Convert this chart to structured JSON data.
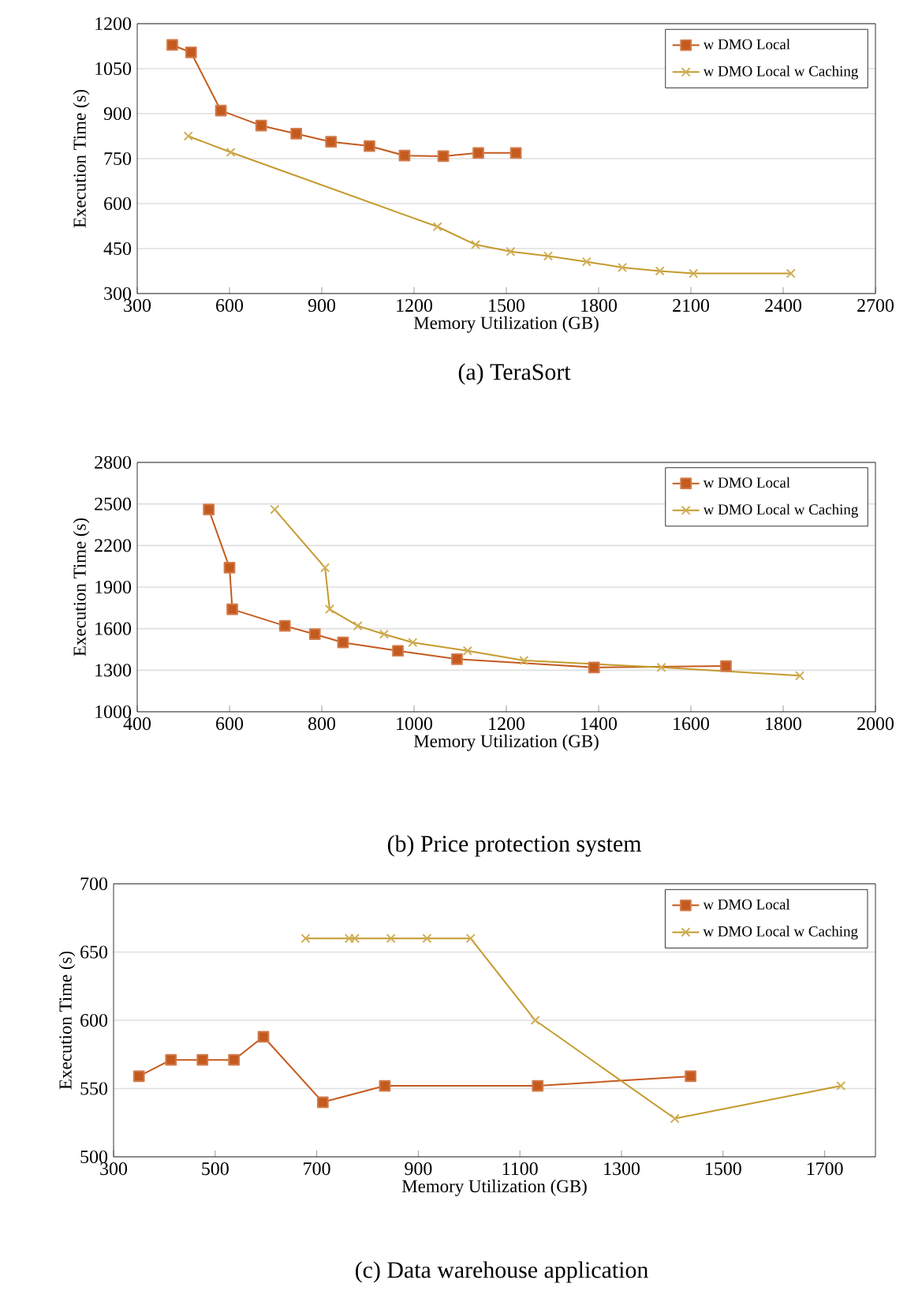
{
  "chart_data": [
    {
      "type": "line",
      "title": "(a) TeraSort",
      "xlabel": "Memory Utilization (GB)",
      "ylabel": "Execution Time (s)",
      "xlim": [
        300,
        2700
      ],
      "xticks": [
        300,
        600,
        900,
        1200,
        1500,
        1800,
        2100,
        2400,
        2700
      ],
      "ylim": [
        300,
        1200
      ],
      "yticks": [
        300,
        450,
        600,
        750,
        900,
        1050,
        1200
      ],
      "grid": "y",
      "legend": "top right",
      "series": [
        {
          "name": "w DMO Local",
          "color": "#c55a1e",
          "marker": "square",
          "x": [
            414,
            475,
            572,
            703,
            817,
            930,
            1055,
            1169,
            1295,
            1409,
            1531
          ],
          "values": [
            1129,
            1104,
            910,
            860,
            833,
            806,
            792,
            760,
            758,
            769,
            769
          ]
        },
        {
          "name": "w DMO Local w Caching",
          "color": "#c49a2c",
          "marker": "cross",
          "x": [
            466,
            604,
            1276,
            1400,
            1514,
            1636,
            1761,
            1877,
            1999,
            2108,
            2425
          ],
          "values": [
            825,
            771,
            523,
            463,
            440,
            425,
            406,
            387,
            375,
            367,
            367
          ]
        }
      ]
    },
    {
      "type": "line",
      "title": "(b) Price protection system",
      "xlabel": "Memory Utilization (GB)",
      "ylabel": "Execution Time (s)",
      "xlim": [
        400,
        2000
      ],
      "xticks": [
        400,
        600,
        800,
        1000,
        1200,
        1400,
        1600,
        1800,
        2000
      ],
      "ylim": [
        1000,
        2800
      ],
      "yticks": [
        1000,
        1300,
        1600,
        1900,
        2200,
        2500,
        2800
      ],
      "grid": "y",
      "legend": "top right",
      "series": [
        {
          "name": "w DMO Local",
          "color": "#c55a1e",
          "marker": "square",
          "x": [
            555,
            600,
            606,
            720,
            785,
            846,
            965,
            1093,
            1390,
            1676
          ],
          "values": [
            2460,
            2040,
            1740,
            1620,
            1560,
            1500,
            1440,
            1380,
            1320,
            1330
          ]
        },
        {
          "name": "w DMO Local w Caching",
          "color": "#c49a2c",
          "marker": "cross",
          "x": [
            698,
            807,
            817,
            878,
            935,
            997,
            1116,
            1238,
            1536,
            1836
          ],
          "values": [
            2460,
            2040,
            1740,
            1620,
            1560,
            1500,
            1440,
            1370,
            1320,
            1260
          ]
        }
      ]
    },
    {
      "type": "line",
      "title": "(c) Data warehouse application",
      "xlabel": "Memory Utilization (GB)",
      "ylabel": "Execution Time (s)",
      "xlim": [
        300,
        1800
      ],
      "xticks": [
        300,
        500,
        700,
        900,
        1100,
        1300,
        1500,
        1700
      ],
      "ylim": [
        500,
        700
      ],
      "yticks": [
        500,
        550,
        600,
        650,
        700
      ],
      "grid": "y",
      "legend": "top right",
      "series": [
        {
          "name": "w DMO Local",
          "color": "#c55a1e",
          "marker": "square",
          "x": [
            350,
            413,
            475,
            537,
            595,
            712,
            834,
            1135,
            1436
          ],
          "values": [
            559,
            571,
            571,
            571,
            588,
            540,
            552,
            552,
            559
          ]
        },
        {
          "name": "w DMO Local w Caching",
          "color": "#c49a2c",
          "marker": "cross",
          "x": [
            678,
            764,
            775,
            846,
            917,
            1003,
            1130,
            1405,
            1732
          ],
          "values": [
            660,
            660,
            660,
            660,
            660,
            660,
            600,
            528,
            552
          ]
        }
      ]
    }
  ]
}
